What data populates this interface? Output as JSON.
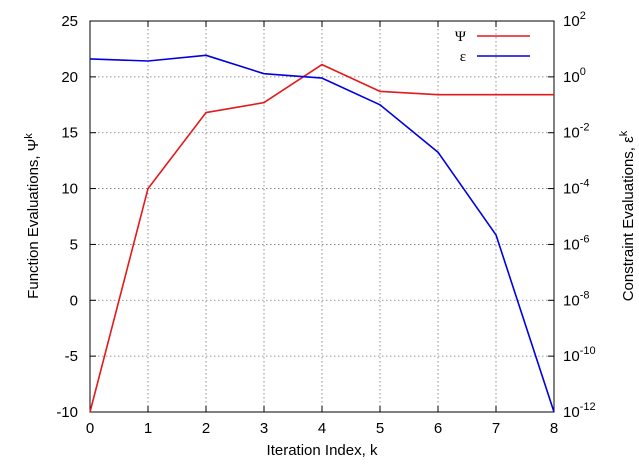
{
  "chart_data": {
    "type": "line",
    "xlabel": "Iteration Index, k",
    "ylabel": "Function Evaluations, Ψ",
    "ylabel_sup": "k",
    "y2label": "Constraint Evaluations, ε",
    "y2label_sup": "k",
    "x": [
      0,
      1,
      2,
      3,
      4,
      5,
      6,
      7,
      8
    ],
    "xlim": [
      0,
      8
    ],
    "ylim": [
      -10,
      25
    ],
    "y2lim_log10": [
      -12,
      2
    ],
    "y2scale": "log",
    "grid": true,
    "legend_position": "top-right",
    "x_ticks": [
      "0",
      "1",
      "2",
      "3",
      "4",
      "5",
      "6",
      "7",
      "8"
    ],
    "y_ticks": [
      "-10",
      "-5",
      "0",
      "5",
      "10",
      "15",
      "20",
      "25"
    ],
    "y2_ticks": [
      {
        "base": "10",
        "exp": "-12"
      },
      {
        "base": "10",
        "exp": "-10"
      },
      {
        "base": "10",
        "exp": "-8"
      },
      {
        "base": "10",
        "exp": "-6"
      },
      {
        "base": "10",
        "exp": "-4"
      },
      {
        "base": "10",
        "exp": "-2"
      },
      {
        "base": "10",
        "exp": "0"
      },
      {
        "base": "10",
        "exp": "2"
      }
    ],
    "series": [
      {
        "name": "Ψ",
        "axis": "left",
        "color": "#e31a1c",
        "values": [
          -10,
          10.0,
          16.8,
          17.7,
          21.1,
          18.7,
          18.4,
          18.4,
          18.4
        ]
      },
      {
        "name": "ε",
        "axis": "right",
        "color": "#0000e0",
        "values": [
          4.4,
          3.7,
          5.9,
          1.3,
          0.9,
          0.1,
          0.002,
          2.2e-06,
          1e-12
        ]
      }
    ]
  }
}
